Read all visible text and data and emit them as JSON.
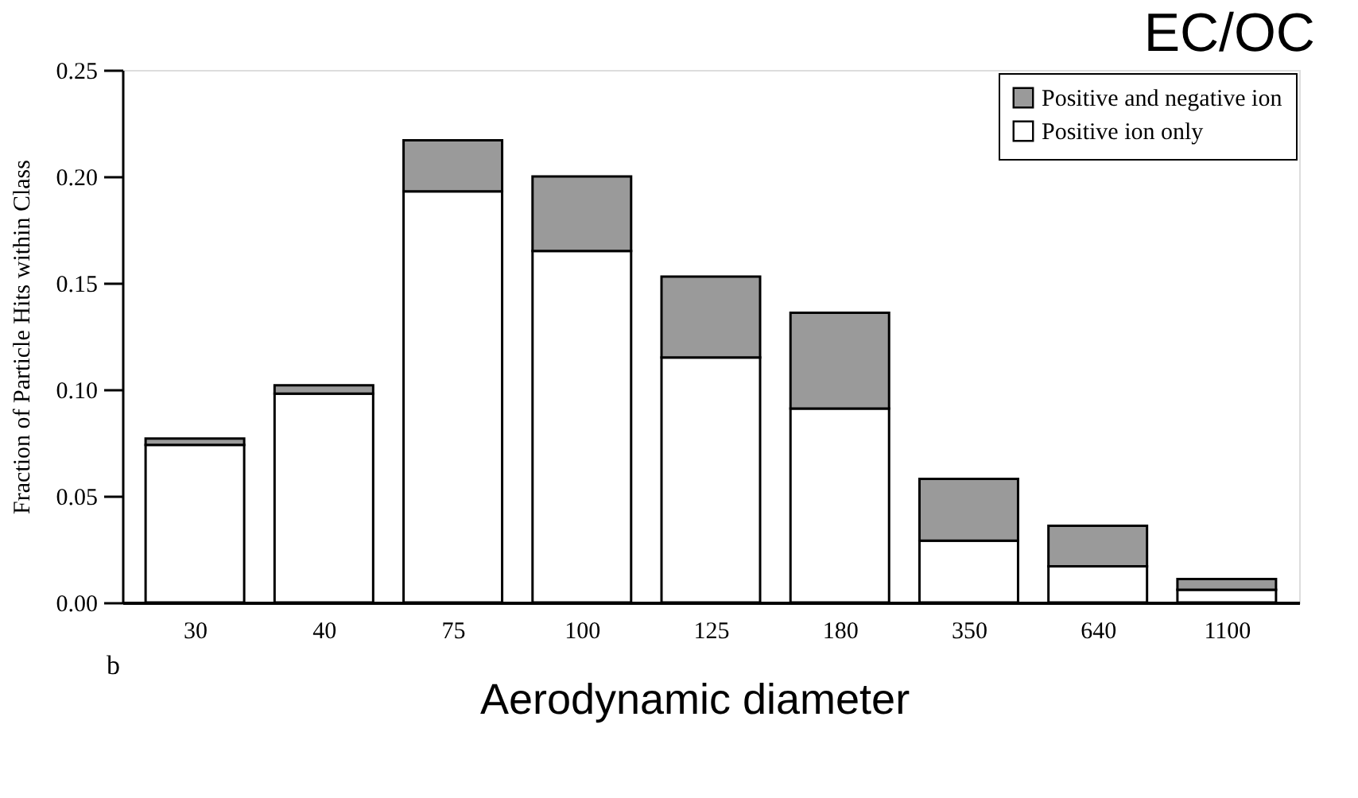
{
  "chart_data": {
    "type": "bar",
    "stacked": true,
    "title": "EC/OC",
    "xlabel": "Aerodynamic diameter",
    "ylabel": "Fraction of Particle Hits within Class",
    "categories": [
      "30",
      "40",
      "75",
      "100",
      "125",
      "180",
      "350",
      "640",
      "1100"
    ],
    "series": [
      {
        "name": "Positive ion only",
        "color": "#ffffff",
        "values": [
          0.074,
          0.098,
          0.193,
          0.165,
          0.115,
          0.091,
          0.029,
          0.017,
          0.006
        ]
      },
      {
        "name": "Positive and negative ion",
        "color": "#9a9a9a",
        "values": [
          0.003,
          0.004,
          0.024,
          0.035,
          0.038,
          0.045,
          0.029,
          0.019,
          0.005
        ]
      }
    ],
    "ylim": [
      0,
      0.25
    ],
    "yticks": [
      {
        "value": 0,
        "label": "0.00"
      },
      {
        "value": 0.05,
        "label": "0.05"
      },
      {
        "value": 0.1,
        "label": "0.10"
      },
      {
        "value": 0.15,
        "label": "0.15"
      },
      {
        "value": 0.2,
        "label": "0.20"
      },
      {
        "value": 0.25,
        "label": "0.25"
      }
    ],
    "annotations": [
      "b"
    ],
    "legend": "top right",
    "grid": false
  }
}
